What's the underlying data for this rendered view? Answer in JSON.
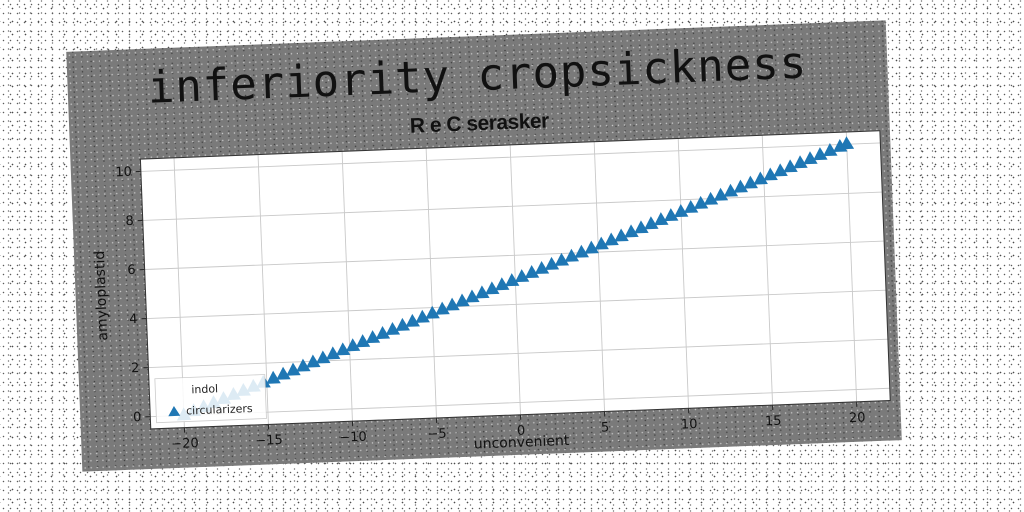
{
  "chart_data": {
    "type": "scatter",
    "title": "inferiority cropsickness",
    "subtitle": "R e C serasker",
    "xlabel": "unconvenient",
    "ylabel": "amyloplastid",
    "xlim": [
      -22,
      22
    ],
    "ylim": [
      -0.5,
      10.5
    ],
    "xticks": [
      -20,
      -15,
      -10,
      -5,
      0,
      5,
      10,
      15,
      20
    ],
    "yticks": [
      0,
      2,
      4,
      6,
      8,
      10
    ],
    "grid": true,
    "legend_position": "lower-left",
    "legend": [
      "indol",
      "circularizers"
    ],
    "series": [
      {
        "name": "circularizers",
        "marker": "triangle",
        "color": "#1f77b4",
        "x": [
          -20,
          -19.4,
          -18.8,
          -18.2,
          -17.6,
          -17,
          -16.4,
          -15.8,
          -15.2,
          -14.6,
          -14,
          -13.4,
          -12.8,
          -12.2,
          -11.6,
          -11,
          -10.4,
          -9.8,
          -9.2,
          -8.6,
          -8,
          -7.4,
          -6.8,
          -6.2,
          -5.6,
          -5,
          -4.4,
          -3.8,
          -3.2,
          -2.6,
          -2,
          -1.4,
          -0.8,
          -0.2,
          0.4,
          1,
          1.6,
          2.2,
          2.8,
          3.4,
          4,
          4.6,
          5.2,
          5.8,
          6.4,
          7,
          7.6,
          8.2,
          8.8,
          9.4,
          10,
          10.6,
          11.2,
          11.8,
          12.4,
          13,
          13.6,
          14.2,
          14.8,
          15.4,
          16,
          16.6,
          17.2,
          17.8,
          18.4,
          19,
          19.6,
          20
        ],
        "y": [
          0,
          0.15,
          0.3,
          0.45,
          0.6,
          0.75,
          0.9,
          1.05,
          1.2,
          1.35,
          1.5,
          1.65,
          1.8,
          1.95,
          2.1,
          2.25,
          2.4,
          2.55,
          2.7,
          2.85,
          3,
          3.15,
          3.3,
          3.45,
          3.6,
          3.75,
          3.9,
          4.05,
          4.2,
          4.35,
          4.5,
          4.65,
          4.8,
          4.95,
          5.1,
          5.25,
          5.4,
          5.55,
          5.7,
          5.85,
          6,
          6.15,
          6.3,
          6.45,
          6.6,
          6.75,
          6.9,
          7.05,
          7.2,
          7.35,
          7.5,
          7.65,
          7.8,
          7.95,
          8.1,
          8.25,
          8.4,
          8.55,
          8.7,
          8.85,
          9,
          9.15,
          9.3,
          9.45,
          9.6,
          9.75,
          9.9,
          10
        ]
      }
    ]
  }
}
